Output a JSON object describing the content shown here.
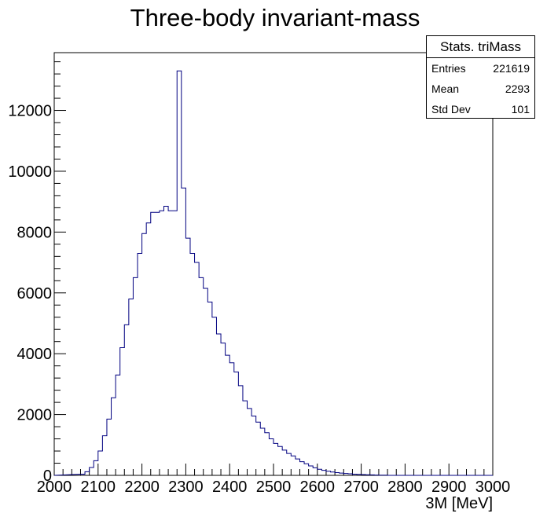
{
  "chart_data": {
    "type": "histogram",
    "title": "Three-body invariant-mass",
    "xlabel": "3M [MeV]",
    "ylabel": "",
    "xlim": [
      2000,
      3000
    ],
    "ylim": [
      0,
      13900
    ],
    "xticks": [
      2000,
      2100,
      2200,
      2300,
      2400,
      2500,
      2600,
      2700,
      2800,
      2900,
      3000
    ],
    "yticks": [
      0,
      2000,
      4000,
      6000,
      8000,
      10000,
      12000
    ],
    "bin_width": 10,
    "grid": false,
    "line_color": "#000080",
    "bins": [
      [
        2060,
        40
      ],
      [
        2070,
        120
      ],
      [
        2080,
        260
      ],
      [
        2090,
        480
      ],
      [
        2100,
        800
      ],
      [
        2110,
        1300
      ],
      [
        2120,
        1850
      ],
      [
        2130,
        2550
      ],
      [
        2140,
        3300
      ],
      [
        2150,
        4200
      ],
      [
        2160,
        4950
      ],
      [
        2170,
        5800
      ],
      [
        2180,
        6500
      ],
      [
        2190,
        7300
      ],
      [
        2200,
        7950
      ],
      [
        2210,
        8300
      ],
      [
        2220,
        8650
      ],
      [
        2230,
        8650
      ],
      [
        2240,
        8700
      ],
      [
        2250,
        8850
      ],
      [
        2260,
        8700
      ],
      [
        2270,
        8700
      ],
      [
        2280,
        13300
      ],
      [
        2290,
        9450
      ],
      [
        2300,
        7800
      ],
      [
        2310,
        7300
      ],
      [
        2320,
        7000
      ],
      [
        2330,
        6500
      ],
      [
        2340,
        6150
      ],
      [
        2350,
        5700
      ],
      [
        2360,
        5200
      ],
      [
        2370,
        4650
      ],
      [
        2380,
        4350
      ],
      [
        2390,
        3950
      ],
      [
        2400,
        3700
      ],
      [
        2410,
        3400
      ],
      [
        2420,
        2950
      ],
      [
        2430,
        2450
      ],
      [
        2440,
        2200
      ],
      [
        2450,
        1950
      ],
      [
        2460,
        1750
      ],
      [
        2470,
        1550
      ],
      [
        2480,
        1400
      ],
      [
        2490,
        1200
      ],
      [
        2500,
        1050
      ],
      [
        2510,
        950
      ],
      [
        2520,
        830
      ],
      [
        2530,
        720
      ],
      [
        2540,
        640
      ],
      [
        2550,
        540
      ],
      [
        2560,
        450
      ],
      [
        2570,
        380
      ],
      [
        2580,
        310
      ],
      [
        2590,
        250
      ],
      [
        2600,
        200
      ],
      [
        2610,
        165
      ],
      [
        2620,
        135
      ],
      [
        2630,
        110
      ],
      [
        2640,
        90
      ],
      [
        2650,
        75
      ],
      [
        2660,
        60
      ],
      [
        2670,
        50
      ],
      [
        2680,
        40
      ],
      [
        2690,
        32
      ],
      [
        2700,
        26
      ],
      [
        2710,
        20
      ],
      [
        2720,
        15
      ],
      [
        2730,
        11
      ],
      [
        2740,
        8
      ],
      [
        2750,
        6
      ]
    ]
  },
  "stats": {
    "title": "Stats. triMass",
    "rows": [
      {
        "label": "Entries",
        "value": "221619"
      },
      {
        "label": "Mean",
        "value": "2293"
      },
      {
        "label": "Std Dev",
        "value": "101"
      }
    ]
  }
}
